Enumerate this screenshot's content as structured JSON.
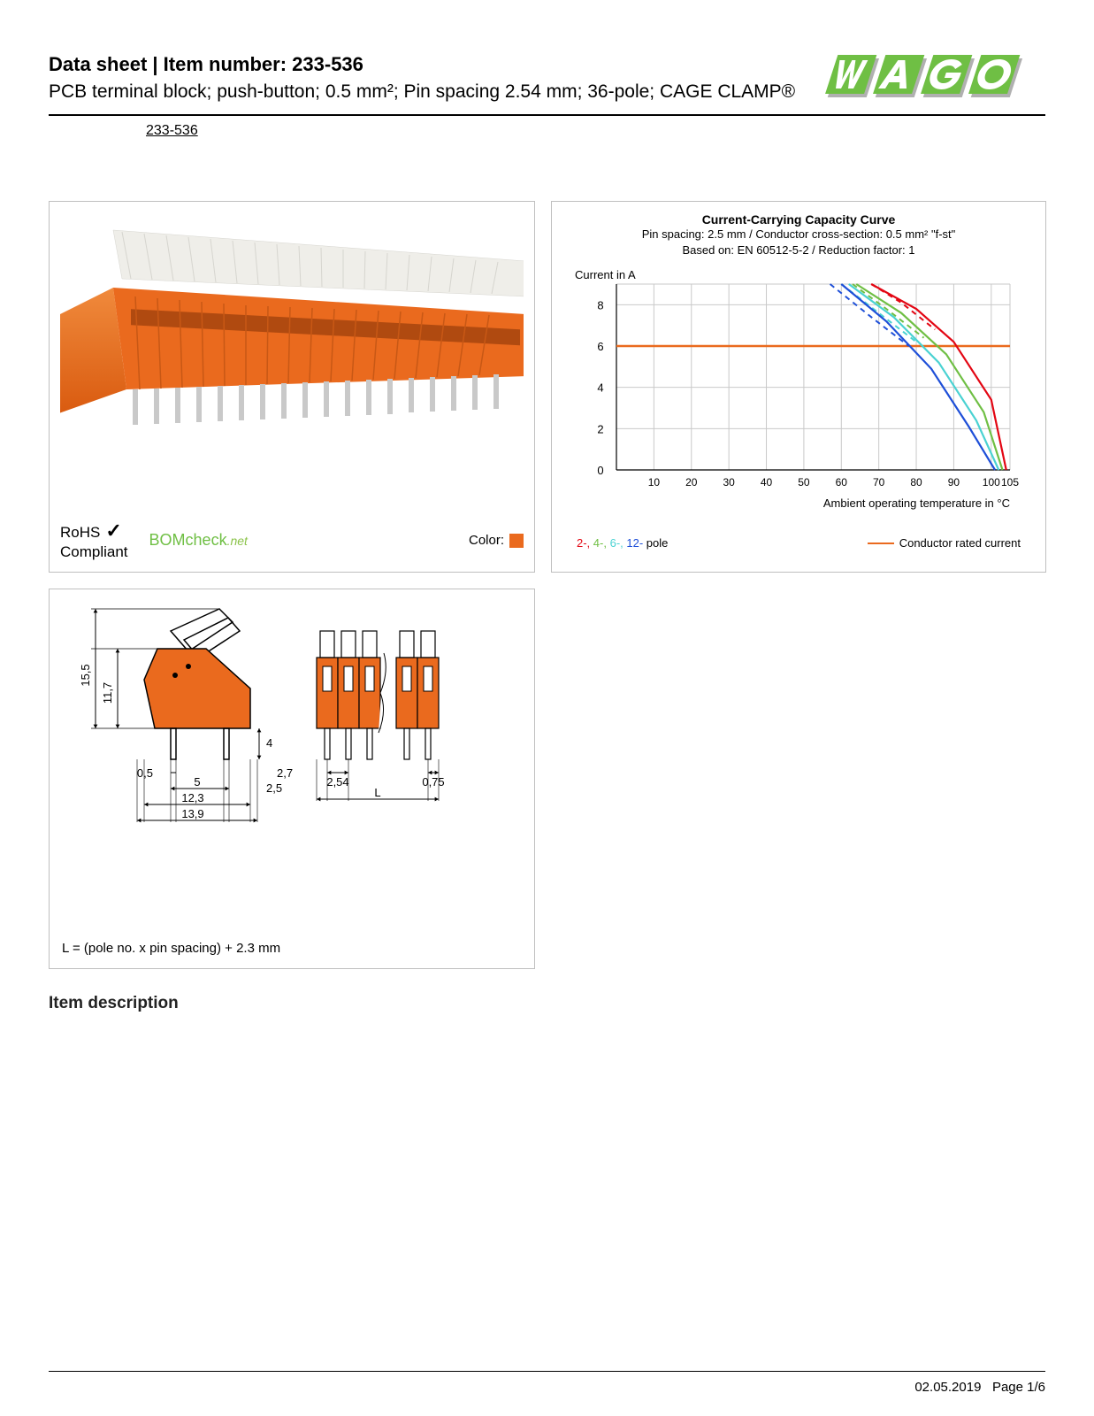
{
  "header": {
    "title_prefix": "Data sheet",
    "title_sep": "  |  ",
    "title_item_label": "Item number:",
    "item_number": "233-536",
    "subtitle": "PCB terminal block; push-button; 0.5 mm²; Pin spacing 2.54 mm; 36-pole; CAGE CLAMP®",
    "link_text": "233-536"
  },
  "logo": {
    "text": "WAGO",
    "fill": "#6fbf44",
    "shadow": "#b0b0b0"
  },
  "product_panel": {
    "block_color": "#ea6a1e",
    "lever_color": "#efeee9",
    "pin_color": "#c9c9c9",
    "rohs_line1": "RoHS",
    "rohs_line2": "Compliant",
    "bomcheck_main": "BOMcheck",
    "bomcheck_suffix": ".net",
    "color_label": "Color:",
    "color_swatch": "#ea6a1e"
  },
  "chart": {
    "title": "Current-Carrying Capacity Curve",
    "sub1": "Pin spacing: 2.5 mm / Conductor cross-section: 0.5 mm² \"f-st\"",
    "sub2": "Based on: EN 60512-5-2 / Reduction factor: 1",
    "y_label": "Current in A",
    "x_label": "Ambient operating temperature in °C",
    "y_ticks": [
      0,
      2,
      4,
      6,
      8
    ],
    "y_max": 9,
    "x_ticks": [
      10,
      20,
      30,
      40,
      50,
      60,
      70,
      80,
      90,
      100,
      105
    ],
    "x_max": 105,
    "grid_color": "#c9c9c9",
    "rated_current": 6,
    "rated_color": "#ea6a1e",
    "series": [
      {
        "color": "#e30613",
        "label": "2-",
        "points_solid": [
          [
            68,
            9
          ],
          [
            80,
            7.8
          ],
          [
            90,
            6.2
          ],
          [
            100,
            3.4
          ],
          [
            104,
            0
          ]
        ],
        "points_dash": [
          [
            68,
            9
          ],
          [
            76,
            8.1
          ],
          [
            85,
            6.8
          ]
        ]
      },
      {
        "color": "#6fbf44",
        "label": "4-",
        "points_solid": [
          [
            64,
            9
          ],
          [
            76,
            7.6
          ],
          [
            88,
            5.6
          ],
          [
            98,
            2.8
          ],
          [
            103,
            0
          ]
        ],
        "points_dash": [
          [
            63,
            9
          ],
          [
            72,
            7.8
          ],
          [
            82,
            6.4
          ]
        ]
      },
      {
        "color": "#4ad2d2",
        "label": "6-",
        "points_solid": [
          [
            62,
            9
          ],
          [
            74,
            7.4
          ],
          [
            86,
            5.2
          ],
          [
            96,
            2.4
          ],
          [
            102,
            0
          ]
        ],
        "points_dash": [
          [
            60,
            9
          ],
          [
            70,
            7.6
          ],
          [
            80,
            6.2
          ]
        ]
      },
      {
        "color": "#1e4fd8",
        "label": "12-",
        "points_solid": [
          [
            60,
            9
          ],
          [
            72,
            7.2
          ],
          [
            84,
            4.9
          ],
          [
            94,
            2.1
          ],
          [
            101,
            0
          ]
        ],
        "points_dash": [
          [
            57,
            9
          ],
          [
            68,
            7.4
          ],
          [
            78,
            6.0
          ]
        ]
      }
    ],
    "legend_pole_suffix": " pole",
    "legend_rated": "Conductor rated current"
  },
  "dimensions": {
    "block_color": "#ea6a1e",
    "line_color": "#000000",
    "values": {
      "h_total": "15,5",
      "h_body": "11,7",
      "pin_len": "4",
      "w_0_5": "0,5",
      "w_2_7": "2,7",
      "w_5": "5",
      "w_2_5": "2,5",
      "w_12_3": "12,3",
      "w_13_9": "13,9",
      "pitch": "2,54",
      "side": "0,75",
      "L": "L"
    },
    "formula": "L = (pole no. x pin spacing) + 2.3 mm"
  },
  "section_heading": "Item description",
  "footer": {
    "date": "02.05.2019",
    "page": "Page 1/6"
  }
}
